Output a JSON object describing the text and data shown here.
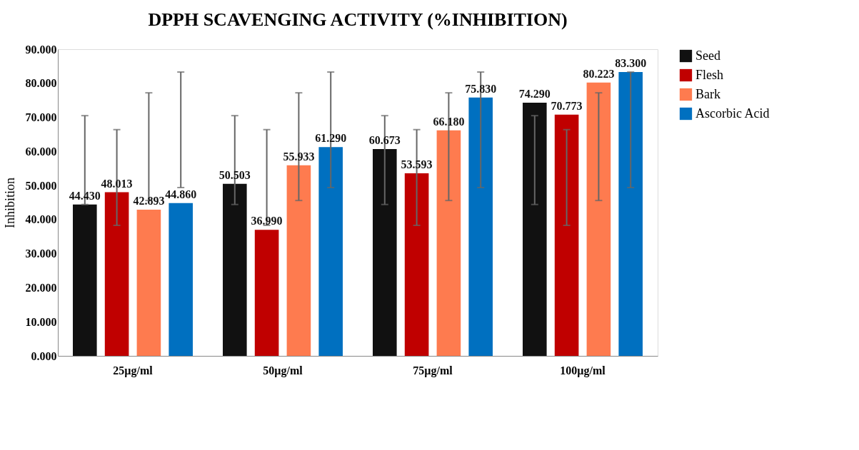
{
  "chart_data": {
    "type": "bar",
    "title": "DPPH SCAVENGING ACTIVITY (%INHIBITION)",
    "ylabel": "Inhibition",
    "categories": [
      "25µg/ml",
      "50µg/ml",
      "75µg/ml",
      "100µg/ml"
    ],
    "series": [
      {
        "name": "Seed",
        "color": "#111111",
        "values": [
          44.43,
          50.503,
          60.673,
          74.29
        ],
        "value_labels": [
          "44.430",
          "50.503",
          "60.673",
          "74.290"
        ],
        "errors": [
          [
            44.43,
            70.5
          ],
          [
            44.43,
            70.5
          ],
          [
            44.43,
            70.5
          ],
          [
            44.43,
            70.5
          ]
        ]
      },
      {
        "name": "Flesh",
        "color": "#c00000",
        "values": [
          48.013,
          36.99,
          53.593,
          70.773
        ],
        "value_labels": [
          "48.013",
          "36.990",
          "53.593",
          "70.773"
        ],
        "errors": [
          [
            38.3,
            66.4
          ],
          [
            38.3,
            66.4
          ],
          [
            38.3,
            66.4
          ],
          [
            38.3,
            66.4
          ]
        ]
      },
      {
        "name": "Bark",
        "color": "#fe7b4f",
        "values": [
          42.893,
          55.933,
          66.18,
          80.223
        ],
        "value_labels": [
          "42.893",
          "55.933",
          "66.180",
          "80.223"
        ],
        "errors": [
          [
            45.6,
            77.2
          ],
          [
            45.6,
            77.2
          ],
          [
            45.6,
            77.2
          ],
          [
            45.6,
            77.2
          ]
        ]
      },
      {
        "name": "Ascorbic Acid",
        "color": "#0070c0",
        "values": [
          44.86,
          61.29,
          75.83,
          83.3
        ],
        "value_labels": [
          "44.860",
          "61.290",
          "75.830",
          "83.300"
        ],
        "errors": [
          [
            49.4,
            83.3
          ],
          [
            49.4,
            83.3
          ],
          [
            49.4,
            83.3
          ],
          [
            49.4,
            83.3
          ]
        ]
      }
    ],
    "ylim": [
      0,
      90
    ],
    "yticks": [
      {
        "value": 0,
        "label": "0.000"
      },
      {
        "value": 10,
        "label": "10.000"
      },
      {
        "value": 20,
        "label": "20.000"
      },
      {
        "value": 30,
        "label": "30.000"
      },
      {
        "value": 40,
        "label": "40.000"
      },
      {
        "value": 50,
        "label": "50.000"
      },
      {
        "value": 60,
        "label": "60.000"
      },
      {
        "value": 70,
        "label": "70.000"
      },
      {
        "value": 80,
        "label": "80.000"
      },
      {
        "value": 90,
        "label": "90.000"
      }
    ],
    "grid": false,
    "legend": "right"
  }
}
